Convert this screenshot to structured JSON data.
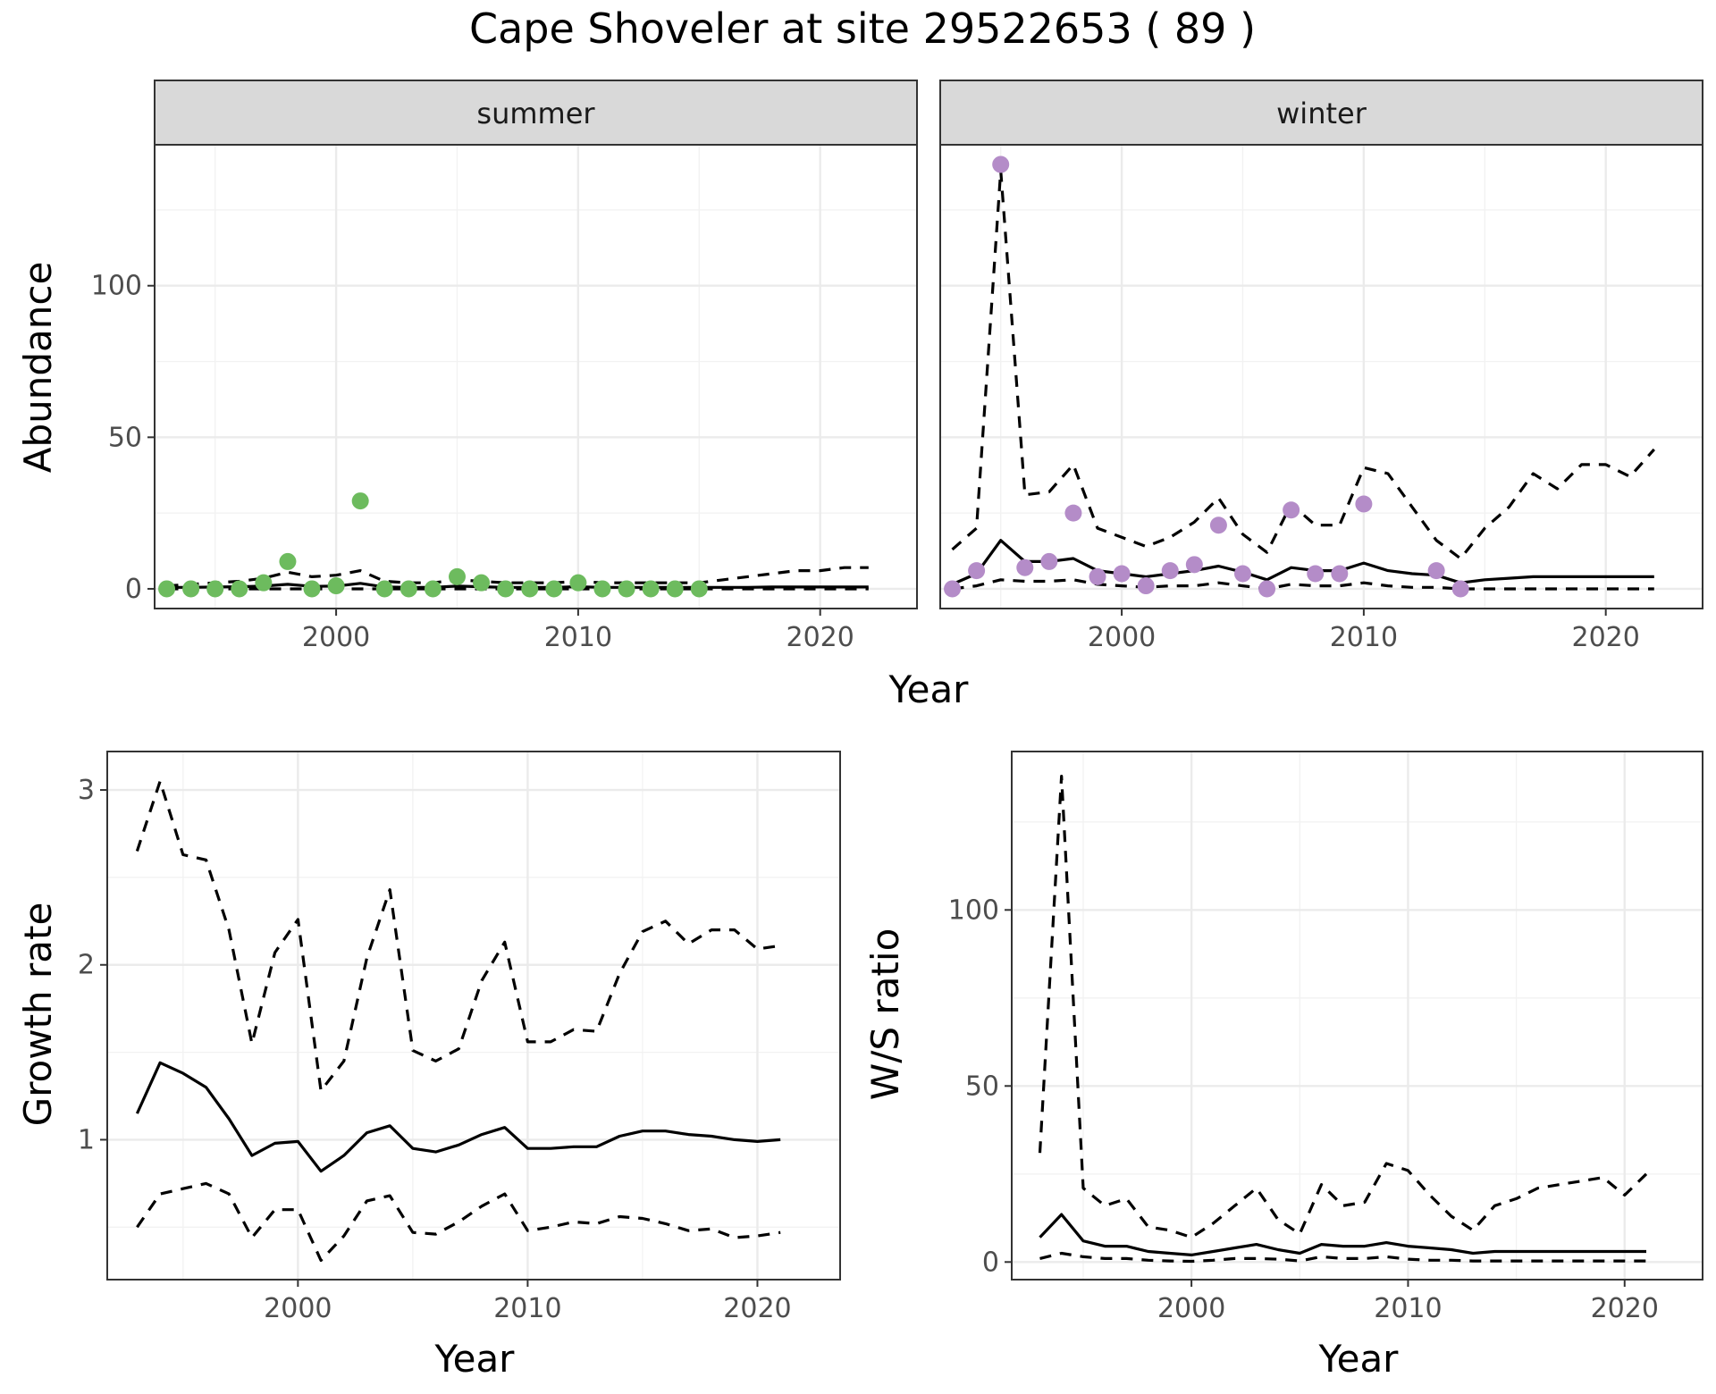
{
  "title": "Cape Shoveler at site 29522653 ( 89 )",
  "colors": {
    "summer_points": "#6dbb5e",
    "winter_points": "#b48cc8",
    "strip_bg": "#d9d9d9"
  },
  "chart_data": [
    {
      "id": "summer",
      "type": "scatter",
      "strip": "summer",
      "xlabel": "Year",
      "ylabel": "Abundance",
      "xlim": [
        1992.5,
        2024.0
      ],
      "ylim": [
        -6.5,
        146.5
      ],
      "xticks": [
        2000,
        2010,
        2020
      ],
      "yticks": [
        0,
        50,
        100
      ],
      "point_color": "#6dbb5e",
      "points": {
        "x": [
          1993,
          1994,
          1995,
          1996,
          1997,
          1998,
          1999,
          2000,
          2001,
          2002,
          2003,
          2004,
          2005,
          2006,
          2007,
          2008,
          2009,
          2010,
          2011,
          2012,
          2013,
          2014,
          2015
        ],
        "y": [
          0,
          0,
          0,
          0,
          2,
          9,
          0,
          1,
          29,
          0,
          0,
          0,
          4,
          2,
          0,
          0,
          0,
          2,
          0,
          0,
          0,
          0,
          0
        ]
      },
      "mean": {
        "x": [
          1993,
          1994,
          1995,
          1996,
          1997,
          1998,
          1999,
          2000,
          2001,
          2002,
          2003,
          2004,
          2005,
          2006,
          2007,
          2008,
          2009,
          2010,
          2011,
          2012,
          2013,
          2014,
          2015,
          2016,
          2017,
          2018,
          2019,
          2020,
          2021,
          2022
        ],
        "y": [
          0.5,
          0.5,
          0.6,
          0.7,
          0.9,
          1.5,
          0.8,
          0.9,
          1.8,
          0.6,
          0.5,
          0.5,
          0.9,
          0.7,
          0.5,
          0.5,
          0.5,
          0.7,
          0.5,
          0.5,
          0.5,
          0.5,
          0.5,
          0.5,
          0.5,
          0.6,
          0.6,
          0.6,
          0.6,
          0.6
        ]
      },
      "lower": {
        "x": [
          1993,
          2022
        ],
        "y": [
          0,
          0
        ]
      },
      "upper": {
        "x": [
          1993,
          1994,
          1995,
          1996,
          1997,
          1998,
          1999,
          2000,
          2001,
          2002,
          2003,
          2004,
          2005,
          2006,
          2007,
          2008,
          2009,
          2010,
          2011,
          2012,
          2013,
          2014,
          2015,
          2016,
          2017,
          2018,
          2019,
          2020,
          2021,
          2022
        ],
        "y": [
          1,
          1.5,
          2,
          2.5,
          3.5,
          5.5,
          4,
          4.5,
          6,
          2.5,
          2,
          2,
          3,
          2.5,
          2,
          2,
          2,
          2.5,
          2,
          2,
          2,
          2,
          2,
          3,
          4,
          5,
          6,
          6,
          7,
          7
        ]
      }
    },
    {
      "id": "winter",
      "type": "scatter",
      "strip": "winter",
      "xlabel": "Year",
      "ylabel": "Abundance",
      "xlim": [
        1992.5,
        2024.0
      ],
      "ylim": [
        -6.5,
        146.5
      ],
      "xticks": [
        2000,
        2010,
        2020
      ],
      "yticks": [
        0,
        50,
        100
      ],
      "point_color": "#b48cc8",
      "points": {
        "x": [
          1993,
          1994,
          1995,
          1996,
          1997,
          1998,
          1999,
          2000,
          2001,
          2002,
          2003,
          2004,
          2005,
          2006,
          2007,
          2008,
          2009,
          2010,
          2013,
          2014
        ],
        "y": [
          0,
          6,
          140,
          7,
          9,
          25,
          4,
          5,
          1,
          6,
          8,
          21,
          5,
          0,
          26,
          5,
          5,
          28,
          6,
          0
        ]
      },
      "mean": {
        "x": [
          1993,
          1994,
          1995,
          1996,
          1997,
          1998,
          1999,
          2000,
          2001,
          2002,
          2003,
          2004,
          2005,
          2006,
          2007,
          2008,
          2009,
          2010,
          2011,
          2012,
          2013,
          2014,
          2015,
          2016,
          2017,
          2018,
          2019,
          2020,
          2021,
          2022
        ],
        "y": [
          1.5,
          5,
          16,
          9,
          9,
          10,
          6,
          5,
          4,
          5,
          6,
          7.5,
          5.5,
          3,
          7,
          6,
          6,
          8.5,
          6,
          5,
          4.5,
          2,
          3,
          3.5,
          4,
          4,
          4,
          4,
          4,
          4
        ]
      },
      "lower": {
        "x": [
          1993,
          1994,
          1995,
          1996,
          1997,
          1998,
          1999,
          2000,
          2001,
          2002,
          2003,
          2004,
          2005,
          2006,
          2007,
          2008,
          2009,
          2010,
          2011,
          2012,
          2013,
          2014,
          2015,
          2016,
          2017,
          2018,
          2019,
          2020,
          2021,
          2022
        ],
        "y": [
          0,
          1,
          3,
          2.5,
          2.5,
          3,
          1.5,
          1,
          0.5,
          1,
          1,
          2,
          1,
          0,
          1.5,
          1,
          1,
          2,
          1,
          0.5,
          0.5,
          0,
          0,
          0,
          0,
          0,
          0,
          0,
          0,
          0
        ]
      },
      "upper": {
        "x": [
          1993,
          1994,
          1995,
          1996,
          1997,
          1998,
          1999,
          2000,
          2001,
          2002,
          2003,
          2004,
          2005,
          2006,
          2007,
          2008,
          2009,
          2010,
          2011,
          2012,
          2013,
          2014,
          2015,
          2016,
          2017,
          2018,
          2019,
          2020,
          2021,
          2022
        ],
        "y": [
          13,
          20,
          138,
          31,
          32,
          41,
          20,
          17,
          14,
          17,
          22,
          30,
          18,
          12,
          28,
          21,
          21,
          40,
          38,
          27,
          16,
          10,
          20,
          27,
          38,
          33,
          41,
          41,
          37,
          46
        ]
      }
    },
    {
      "id": "growth",
      "type": "line",
      "xlabel": "Year",
      "ylabel": "Growth rate",
      "xlim": [
        1991.7,
        2023.6
      ],
      "ylim": [
        0.2,
        3.22
      ],
      "xticks": [
        2000,
        2010,
        2020
      ],
      "yticks": [
        1,
        2,
        3
      ],
      "mean": {
        "x": [
          1993,
          1994,
          1995,
          1996,
          1997,
          1998,
          1999,
          2000,
          2001,
          2002,
          2003,
          2004,
          2005,
          2006,
          2007,
          2008,
          2009,
          2010,
          2011,
          2012,
          2013,
          2014,
          2015,
          2016,
          2017,
          2018,
          2019,
          2020,
          2021
        ],
        "y": [
          1.15,
          1.44,
          1.38,
          1.3,
          1.12,
          0.91,
          0.98,
          0.99,
          0.82,
          0.91,
          1.04,
          1.08,
          0.95,
          0.93,
          0.97,
          1.03,
          1.07,
          0.95,
          0.95,
          0.96,
          0.96,
          1.02,
          1.05,
          1.05,
          1.03,
          1.02,
          1.0,
          0.99,
          1.0
        ]
      },
      "lower": {
        "x": [
          1993,
          1994,
          1995,
          1996,
          1997,
          1998,
          1999,
          2000,
          2001,
          2002,
          2003,
          2004,
          2005,
          2006,
          2007,
          2008,
          2009,
          2010,
          2011,
          2012,
          2013,
          2014,
          2015,
          2016,
          2017,
          2018,
          2019,
          2020,
          2021
        ],
        "y": [
          0.5,
          0.69,
          0.72,
          0.75,
          0.69,
          0.44,
          0.6,
          0.6,
          0.31,
          0.45,
          0.65,
          0.68,
          0.47,
          0.46,
          0.53,
          0.62,
          0.69,
          0.48,
          0.5,
          0.53,
          0.52,
          0.56,
          0.55,
          0.52,
          0.48,
          0.49,
          0.44,
          0.45,
          0.47
        ]
      },
      "upper": {
        "x": [
          1993,
          1994,
          1995,
          1996,
          1997,
          1998,
          1999,
          2000,
          2001,
          2002,
          2003,
          2004,
          2005,
          2006,
          2007,
          2008,
          2009,
          2010,
          2011,
          2012,
          2013,
          2014,
          2015,
          2016,
          2017,
          2018,
          2019,
          2020,
          2021
        ],
        "y": [
          2.65,
          3.05,
          2.63,
          2.6,
          2.2,
          1.55,
          2.07,
          2.26,
          1.28,
          1.45,
          2.04,
          2.43,
          1.51,
          1.45,
          1.52,
          1.91,
          2.13,
          1.56,
          1.56,
          1.63,
          1.62,
          1.95,
          2.19,
          2.25,
          2.12,
          2.2,
          2.2,
          2.09,
          2.11
        ]
      }
    },
    {
      "id": "ratio",
      "type": "line",
      "xlabel": "Year",
      "ylabel": "W/S ratio",
      "xlim": [
        1991.7,
        2023.6
      ],
      "ylim": [
        -5.0,
        145.0
      ],
      "xticks": [
        2000,
        2010,
        2020
      ],
      "yticks": [
        0,
        50,
        100
      ],
      "mean": {
        "x": [
          1993,
          1994,
          1995,
          1996,
          1997,
          1998,
          1999,
          2000,
          2001,
          2002,
          2003,
          2004,
          2005,
          2006,
          2007,
          2008,
          2009,
          2010,
          2011,
          2012,
          2013,
          2014,
          2015,
          2016,
          2017,
          2018,
          2019,
          2020,
          2021
        ],
        "y": [
          7,
          13.5,
          6,
          4.5,
          4.5,
          3,
          2.5,
          2,
          3,
          4,
          5,
          3.5,
          2.5,
          5,
          4.5,
          4.5,
          5.5,
          4.5,
          4,
          3.5,
          2.5,
          3,
          3,
          3,
          3,
          3,
          3,
          3,
          3
        ]
      },
      "lower": {
        "x": [
          1993,
          1994,
          1995,
          1996,
          1997,
          1998,
          1999,
          2000,
          2001,
          2002,
          2003,
          2004,
          2005,
          2006,
          2007,
          2008,
          2009,
          2010,
          2011,
          2012,
          2013,
          2014,
          2015,
          2016,
          2017,
          2018,
          2019,
          2020,
          2021
        ],
        "y": [
          1,
          2.5,
          1.5,
          1,
          1,
          0.5,
          0.3,
          0.2,
          0.5,
          1,
          1,
          0.8,
          0.3,
          1.5,
          1,
          1,
          1.5,
          0.8,
          0.5,
          0.5,
          0.3,
          0.3,
          0.3,
          0.3,
          0.3,
          0.3,
          0.3,
          0.3,
          0.3
        ]
      },
      "upper": {
        "x": [
          1993,
          1994,
          1995,
          1996,
          1997,
          1998,
          1999,
          2000,
          2001,
          2002,
          2003,
          2004,
          2005,
          2006,
          2007,
          2008,
          2009,
          2010,
          2011,
          2012,
          2013,
          2014,
          2015,
          2016,
          2017,
          2018,
          2019,
          2020,
          2021
        ],
        "y": [
          31,
          138,
          21,
          16,
          18,
          10,
          9,
          7,
          11,
          16,
          21,
          12,
          8,
          22,
          16,
          17,
          28,
          26,
          19,
          13,
          9,
          16,
          18,
          21,
          22,
          23,
          24,
          19,
          25
        ]
      }
    }
  ]
}
